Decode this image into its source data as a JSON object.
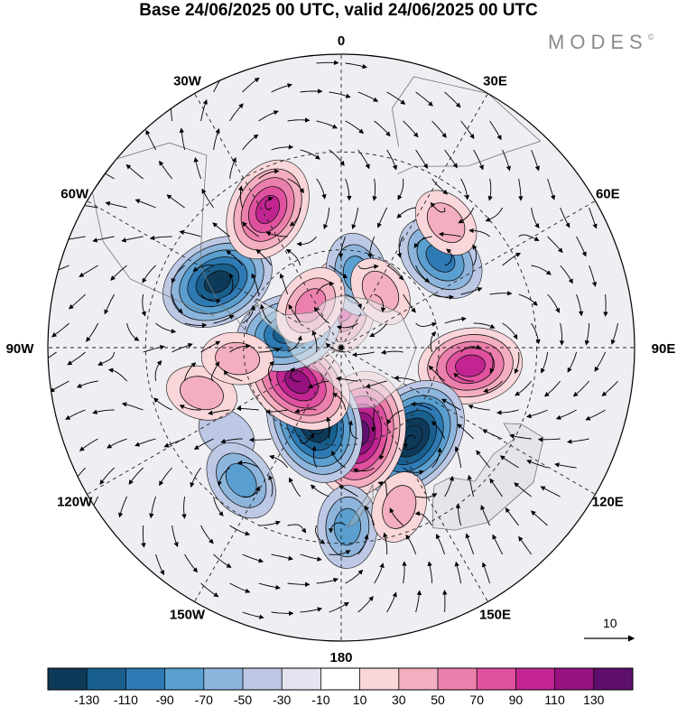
{
  "title": "Base 24/06/2025 00 UTC, valid 24/06/2025 00 UTC",
  "logo": {
    "text": "MODES",
    "mark": "©"
  },
  "longitude_labels": [
    {
      "id": "lon-0",
      "text": "0"
    },
    {
      "id": "lon-30e",
      "text": "30E"
    },
    {
      "id": "lon-60e",
      "text": "60E"
    },
    {
      "id": "lon-90e",
      "text": "90E"
    },
    {
      "id": "lon-120e",
      "text": "120E"
    },
    {
      "id": "lon-150e",
      "text": "150E"
    },
    {
      "id": "lon-180",
      "text": "180"
    },
    {
      "id": "lon-150w",
      "text": "150W"
    },
    {
      "id": "lon-120w",
      "text": "120W"
    },
    {
      "id": "lon-90w",
      "text": "90W"
    },
    {
      "id": "lon-60w",
      "text": "60W"
    },
    {
      "id": "lon-30w",
      "text": "30W"
    }
  ],
  "reference_vector": {
    "label": "10"
  },
  "colorbar": {
    "colors": [
      "#0e3a5a",
      "#185f8e",
      "#2e7ab4",
      "#5a9fcf",
      "#8db5dc",
      "#bcc8e4",
      "#e3e3f1",
      "#ffffff",
      "#f9d6d9",
      "#f3aebf",
      "#ec80ad",
      "#e0519f",
      "#c22591",
      "#96127f",
      "#5e0f6e"
    ],
    "tick_labels": [
      "-130",
      "-110",
      "-90",
      "-70",
      "-50",
      "-30",
      "-10",
      "10",
      "30",
      "50",
      "70",
      "90",
      "110",
      "130"
    ]
  },
  "anomalies": [
    {
      "level": 70,
      "lon": 0,
      "colat": 13
    },
    {
      "level": -50,
      "lon": 12,
      "colat": 23
    },
    {
      "level": 30,
      "lon": 35,
      "colat": 21
    },
    {
      "level": -70,
      "lon": 48,
      "colat": 41
    },
    {
      "level": 30,
      "lon": 40,
      "colat": 50
    },
    {
      "level": 90,
      "lon": 98,
      "colat": 40
    },
    {
      "level": -130,
      "lon": 142,
      "colat": 35
    },
    {
      "level": 130,
      "lon": 168,
      "colat": 27
    },
    {
      "level": -130,
      "lon": -160,
      "colat": 24
    },
    {
      "level": 110,
      "lon": -128,
      "colat": 17
    },
    {
      "level": -90,
      "lon": -74,
      "colat": 17
    },
    {
      "level": 50,
      "lon": -36,
      "colat": 16
    },
    {
      "level": -110,
      "lon": -62,
      "colat": 43
    },
    {
      "level": 90,
      "lon": -28,
      "colat": 48
    },
    {
      "level": -10,
      "lon": -127,
      "colat": 44
    },
    {
      "level": -50,
      "lon": -143,
      "colat": 51
    },
    {
      "level": -50,
      "lon": 178,
      "colat": 55
    },
    {
      "level": 30,
      "lon": 160,
      "colat": 52
    },
    {
      "level": 30,
      "lon": -108,
      "colat": 45
    },
    {
      "level": 30,
      "lon": -96,
      "colat": 32
    }
  ]
}
